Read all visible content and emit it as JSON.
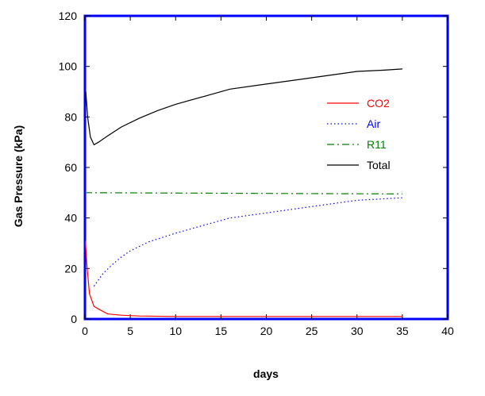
{
  "chart_data": {
    "type": "line",
    "xlabel": "days",
    "ylabel": "Gas Pressure (kPa)",
    "xlim": [
      0,
      40
    ],
    "ylim": [
      0,
      120
    ],
    "xticks": [
      0,
      5,
      10,
      15,
      20,
      25,
      30,
      35,
      40
    ],
    "yticks": [
      0,
      20,
      40,
      60,
      80,
      100,
      120
    ],
    "grid": false,
    "legend_position": "right",
    "frame_color": "#0000ff",
    "series": [
      {
        "name": "CO2",
        "color": "#ff0000",
        "dash": "solid",
        "x": [
          0.05,
          0.2,
          0.5,
          1,
          1.5,
          2.5,
          4,
          6,
          10,
          15,
          20,
          25,
          30,
          35
        ],
        "y": [
          31,
          22,
          10,
          5,
          4,
          2,
          1.5,
          1.2,
          1,
          1,
          1,
          1,
          1,
          1
        ]
      },
      {
        "name": "Air",
        "color": "#0000ff",
        "dash": "dotted",
        "x": [
          1,
          2,
          3,
          4,
          5,
          7,
          10,
          13,
          16,
          20,
          25,
          30,
          35
        ],
        "y": [
          13,
          18,
          21.5,
          24.5,
          27,
          30.5,
          34,
          37,
          40,
          42,
          44.5,
          47,
          48
        ]
      },
      {
        "name": "R11",
        "color": "#008000",
        "dash": "dashdot",
        "x": [
          0,
          35
        ],
        "y": [
          50,
          49.5
        ]
      },
      {
        "name": "Total",
        "color": "#000000",
        "dash": "solid",
        "x": [
          0.1,
          0.3,
          0.6,
          1,
          1.5,
          2.5,
          4,
          6,
          8,
          10,
          13,
          16,
          20,
          25,
          30,
          33,
          35
        ],
        "y": [
          90,
          80,
          72,
          69,
          70,
          72.5,
          76,
          79.5,
          82.5,
          85,
          88,
          91,
          93,
          95.5,
          98,
          98.5,
          99
        ]
      }
    ]
  }
}
